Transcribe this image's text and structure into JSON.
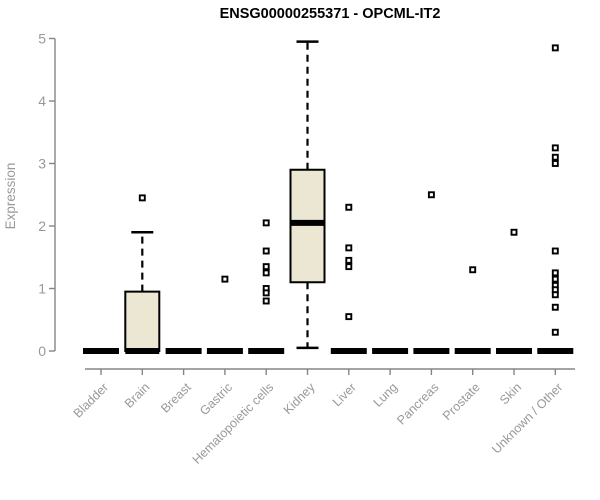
{
  "chart_data": {
    "type": "boxplot",
    "title": "ENSG00000255371 - OPCML-IT2",
    "ylabel": "Expression",
    "ylim": [
      0,
      5
    ],
    "yticks": [
      0,
      1,
      2,
      3,
      4,
      5
    ],
    "grid": false,
    "legend": "none",
    "categories": [
      "Bladder",
      "Brain",
      "Breast",
      "Gastric",
      "Hematopoietic cells",
      "Kidney",
      "Liver",
      "Lung",
      "Pancreas",
      "Prostate",
      "Skin",
      "Unknown / Other"
    ],
    "boxes": [
      {
        "category": "Bladder",
        "low": 0,
        "q1": 0,
        "median": 0,
        "q3": 0,
        "high": 0,
        "outliers": []
      },
      {
        "category": "Brain",
        "low": 0,
        "q1": 0,
        "median": 0,
        "q3": 0.95,
        "high": 1.9,
        "outliers": [
          2.45
        ]
      },
      {
        "category": "Breast",
        "low": 0,
        "q1": 0,
        "median": 0,
        "q3": 0,
        "high": 0,
        "outliers": []
      },
      {
        "category": "Gastric",
        "low": 0,
        "q1": 0,
        "median": 0,
        "q3": 0,
        "high": 0,
        "outliers": [
          1.15
        ]
      },
      {
        "category": "Hematopoietic cells",
        "low": 0,
        "q1": 0,
        "median": 0,
        "q3": 0,
        "high": 0,
        "outliers": [
          2.05,
          1.6,
          1.35,
          1.25,
          1.0,
          0.93,
          0.8
        ]
      },
      {
        "category": "Kidney",
        "low": 0.05,
        "q1": 1.1,
        "median": 2.05,
        "q3": 2.9,
        "high": 4.95,
        "outliers": []
      },
      {
        "category": "Liver",
        "low": 0,
        "q1": 0,
        "median": 0,
        "q3": 0,
        "high": 0,
        "outliers": [
          2.3,
          1.65,
          1.45,
          1.35,
          0.55
        ]
      },
      {
        "category": "Lung",
        "low": 0,
        "q1": 0,
        "median": 0,
        "q3": 0,
        "high": 0,
        "outliers": []
      },
      {
        "category": "Pancreas",
        "low": 0,
        "q1": 0,
        "median": 0,
        "q3": 0,
        "high": 0,
        "outliers": [
          2.5
        ]
      },
      {
        "category": "Prostate",
        "low": 0,
        "q1": 0,
        "median": 0,
        "q3": 0,
        "high": 0,
        "outliers": [
          1.3
        ]
      },
      {
        "category": "Skin",
        "low": 0,
        "q1": 0,
        "median": 0,
        "q3": 0,
        "high": 0,
        "outliers": [
          1.9
        ]
      },
      {
        "category": "Unknown / Other",
        "low": 0,
        "q1": 0,
        "median": 0,
        "q3": 0,
        "high": 0,
        "outliers": [
          4.85,
          3.25,
          3.1,
          3.0,
          1.6,
          1.25,
          1.15,
          1.05,
          0.98,
          0.9,
          0.7,
          0.3
        ]
      }
    ]
  },
  "colors": {
    "box_fill": "#ece7d2",
    "box_stroke": "#000000",
    "axis": "#858585",
    "tick_label": "#999999",
    "title": "#000000",
    "background": "#ffffff"
  }
}
